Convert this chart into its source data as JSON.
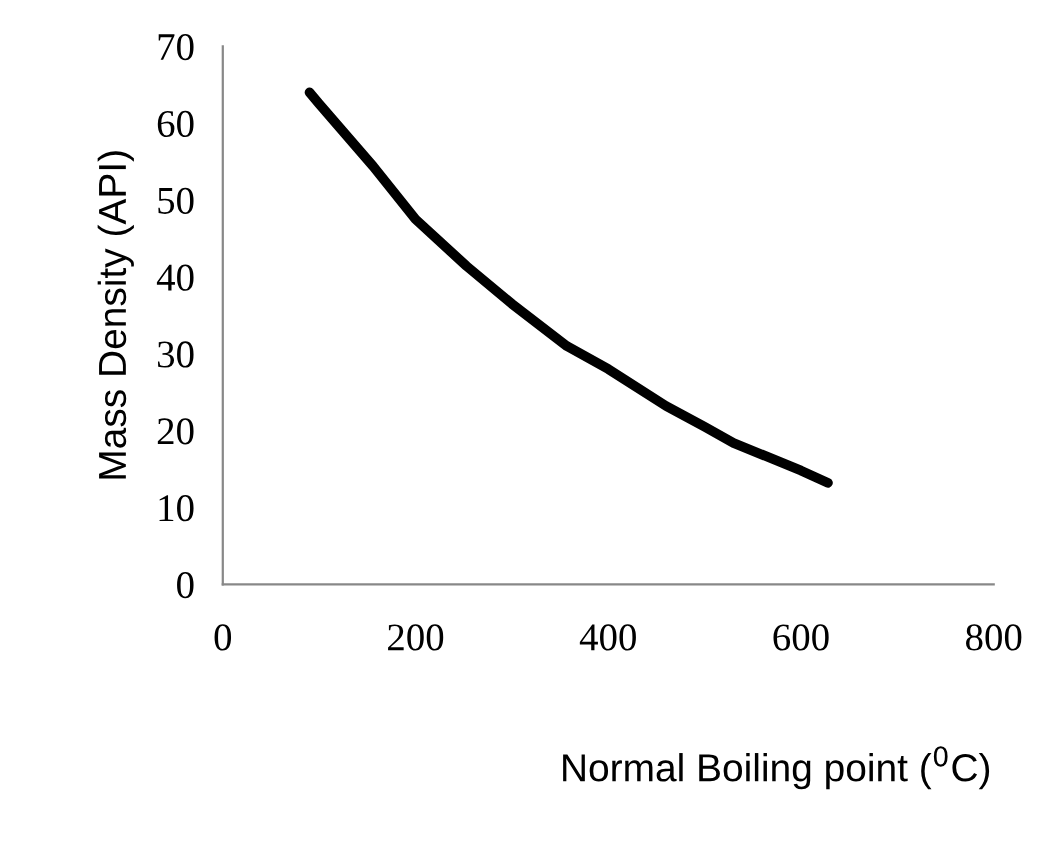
{
  "chart_data": {
    "type": "line",
    "xlabel": "Normal Boiling point ($^{0}$C)",
    "ylabel": "Mass Density (API)",
    "series": [
      {
        "color": "#000000",
        "x": [
          90,
          100,
          156,
          200,
          253,
          300,
          357,
          400,
          460,
          500,
          530,
          600,
          628
        ],
        "values": [
          64,
          62.5,
          54.4,
          47.5,
          41.4,
          36.5,
          31.0,
          28,
          23.2,
          20.5,
          18.4,
          14.8,
          13.2
        ]
      }
    ],
    "xlim": [
      0,
      800
    ],
    "xticks": [
      0,
      200,
      400,
      600,
      800
    ],
    "ylim": [
      0,
      70
    ],
    "yticks": [
      0,
      10,
      20,
      30,
      40,
      50,
      60,
      70
    ],
    "grid": false,
    "marker": "none",
    "line_style": "solid"
  }
}
